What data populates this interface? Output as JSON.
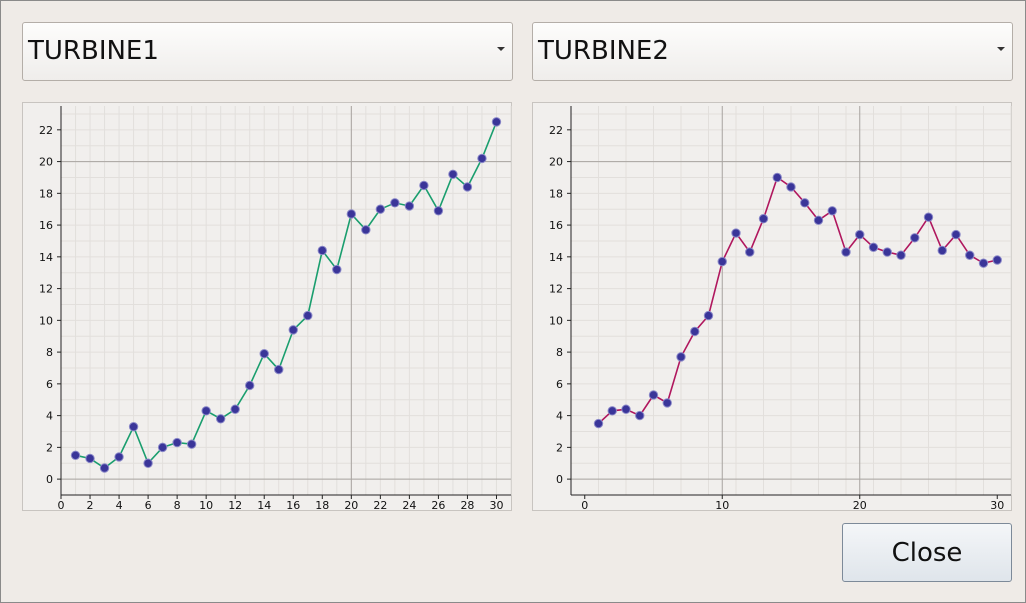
{
  "window": {
    "background": "#efebe7"
  },
  "combos": [
    {
      "selected": "TURBINE1"
    },
    {
      "selected": "TURBINE2"
    }
  ],
  "close_label": "Close",
  "chart_data": [
    {
      "type": "line",
      "xlim": [
        0,
        31
      ],
      "ylim": [
        -1,
        23.5
      ],
      "xticks": [
        0,
        2,
        4,
        6,
        8,
        10,
        12,
        14,
        16,
        18,
        20,
        22,
        24,
        26,
        28,
        30
      ],
      "yticks": [
        0,
        2,
        4,
        6,
        8,
        10,
        12,
        14,
        16,
        18,
        20,
        22
      ],
      "major_x": [
        20
      ],
      "major_y": [
        0,
        20
      ],
      "grid": true,
      "line_color": "#1a9e6e",
      "marker_color": "#3a3599",
      "series": [
        {
          "x": [
            1,
            2,
            3,
            4,
            5,
            6,
            7,
            8,
            9,
            10,
            11,
            12,
            13,
            14,
            15,
            16,
            17,
            18,
            19,
            20,
            21,
            22,
            23,
            24,
            25,
            26,
            27,
            28,
            29,
            30
          ],
          "y": [
            1.5,
            1.3,
            0.7,
            1.4,
            3.3,
            1.0,
            2.0,
            2.3,
            2.2,
            4.3,
            3.8,
            4.4,
            5.9,
            7.9,
            6.9,
            9.4,
            10.3,
            14.4,
            13.2,
            16.7,
            15.7,
            17.0,
            17.4,
            17.2,
            18.5,
            16.9,
            19.2,
            18.4,
            20.2,
            22.5
          ]
        }
      ]
    },
    {
      "type": "line",
      "xlim": [
        -1,
        31
      ],
      "ylim": [
        -1,
        23.5
      ],
      "xticks": [
        0,
        10,
        20,
        30
      ],
      "yticks": [
        0,
        2,
        4,
        6,
        8,
        10,
        12,
        14,
        16,
        18,
        20,
        22
      ],
      "major_x": [
        10,
        20
      ],
      "major_y": [
        0,
        20
      ],
      "grid": true,
      "line_color": "#b0175e",
      "marker_color": "#3a3599",
      "series": [
        {
          "x": [
            1,
            2,
            3,
            4,
            5,
            6,
            7,
            8,
            9,
            10,
            11,
            12,
            13,
            14,
            15,
            16,
            17,
            18,
            19,
            20,
            21,
            22,
            23,
            24,
            25,
            26,
            27,
            28,
            29,
            30
          ],
          "y": [
            3.5,
            4.3,
            4.4,
            4.0,
            5.3,
            4.8,
            7.7,
            9.3,
            10.3,
            13.7,
            15.5,
            14.3,
            16.4,
            19.0,
            18.4,
            17.4,
            16.3,
            16.9,
            14.3,
            15.4,
            14.6,
            14.3,
            14.1,
            15.2,
            16.5,
            14.4,
            15.4,
            14.1,
            13.6,
            13.8
          ]
        }
      ]
    }
  ]
}
